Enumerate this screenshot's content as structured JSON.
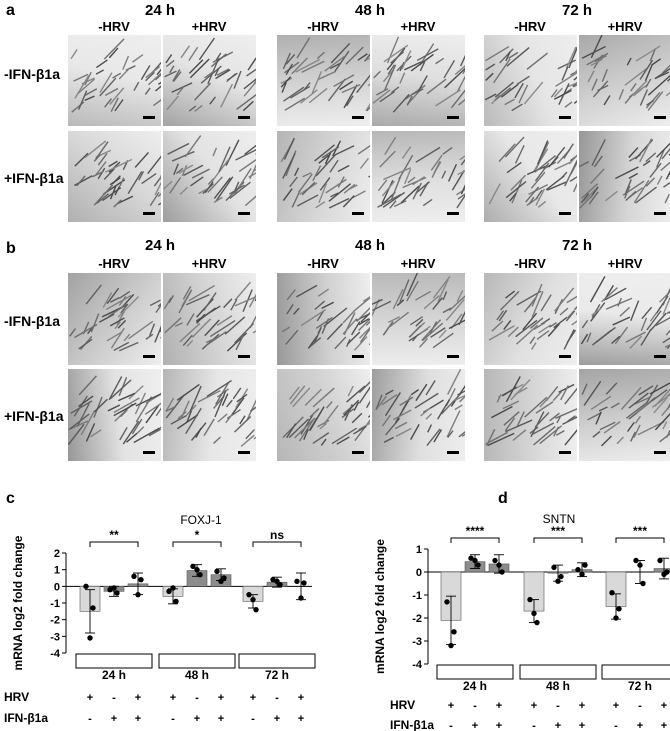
{
  "panel_a": {
    "letter": "a",
    "times": [
      "24 h",
      "48 h",
      "72 h"
    ],
    "conditions": [
      "-HRV",
      "+HRV"
    ],
    "rows": [
      "-IFN-β1a",
      "+IFN-β1a"
    ]
  },
  "panel_b": {
    "letter": "b",
    "times": [
      "24 h",
      "48 h",
      "72 h"
    ],
    "conditions": [
      "-HRV",
      "+HRV"
    ],
    "rows": [
      "-IFN-β1a",
      "+IFN-β1a"
    ]
  },
  "chart_data": [
    {
      "panel": "c",
      "type": "bar",
      "title": "FOXJ-1",
      "ylabel": "mRNA log2 fold change",
      "ylim": [
        -4,
        2
      ],
      "yticks": [
        2,
        1,
        0,
        -1,
        -2,
        -3,
        -4
      ],
      "groups": [
        "24 h",
        "48 h",
        "72 h"
      ],
      "conditions": [
        {
          "HRV": "+",
          "IFN": "-"
        },
        {
          "HRV": "-",
          "IFN": "+"
        },
        {
          "HRV": "+",
          "IFN": "+"
        }
      ],
      "row_labels": [
        "HRV",
        "IFN-β1a"
      ],
      "means": [
        [
          -1.5,
          -0.3,
          0.15
        ],
        [
          -0.6,
          0.95,
          0.7
        ],
        [
          -0.9,
          0.25,
          0.0
        ]
      ],
      "errors": [
        [
          1.3,
          0.3,
          0.65
        ],
        [
          0.45,
          0.35,
          0.35
        ],
        [
          0.4,
          0.3,
          0.8
        ]
      ],
      "points": [
        [
          [
            0.0,
            -1.3,
            -3.1
          ],
          [
            -0.2,
            -0.4,
            -0.1
          ],
          [
            0.6,
            0.4,
            -0.5
          ]
        ],
        [
          [
            -0.3,
            -0.9,
            -0.1
          ],
          [
            1.2,
            0.7,
            1.0
          ],
          [
            0.9,
            0.5,
            0.3
          ]
        ],
        [
          [
            -0.5,
            -1.4,
            -0.8
          ],
          [
            0.4,
            0.1,
            0.3
          ],
          [
            0.3,
            0.2,
            -0.7
          ]
        ]
      ],
      "significance": [
        "**",
        "*",
        "ns"
      ]
    },
    {
      "panel": "d",
      "type": "bar",
      "title": "SNTN",
      "ylabel": "mRNA log2 fold change",
      "ylim": [
        -4,
        1
      ],
      "yticks": [
        1,
        0,
        -1,
        -2,
        -3,
        -4
      ],
      "groups": [
        "24 h",
        "48 h",
        "72 h"
      ],
      "conditions": [
        {
          "HRV": "+",
          "IFN": "-"
        },
        {
          "HRV": "-",
          "IFN": "+"
        },
        {
          "HRV": "+",
          "IFN": "+"
        }
      ],
      "row_labels": [
        "HRV",
        "IFN-β1a"
      ],
      "means": [
        [
          -2.1,
          0.45,
          0.35
        ],
        [
          -1.7,
          -0.05,
          0.1
        ],
        [
          -1.5,
          0.0,
          0.15
        ]
      ],
      "errors": [
        [
          1.05,
          0.3,
          0.4
        ],
        [
          0.5,
          0.35,
          0.3
        ],
        [
          0.55,
          0.5,
          0.45
        ]
      ],
      "points": [
        [
          [
            -1.3,
            -2.6,
            -3.2
          ],
          [
            0.6,
            0.3,
            0.5
          ],
          [
            0.5,
            0.0,
            0.3
          ]
        ],
        [
          [
            -1.2,
            -2.2,
            -1.8
          ],
          [
            0.2,
            -0.2,
            -0.4
          ],
          [
            0.1,
            0.3,
            -0.1
          ]
        ],
        [
          [
            -0.9,
            -1.6,
            -2.0
          ],
          [
            0.5,
            -0.5,
            0.3
          ],
          [
            0.5,
            0.0,
            -0.1
          ]
        ]
      ],
      "significance": [
        "****",
        "***",
        "***"
      ]
    }
  ]
}
